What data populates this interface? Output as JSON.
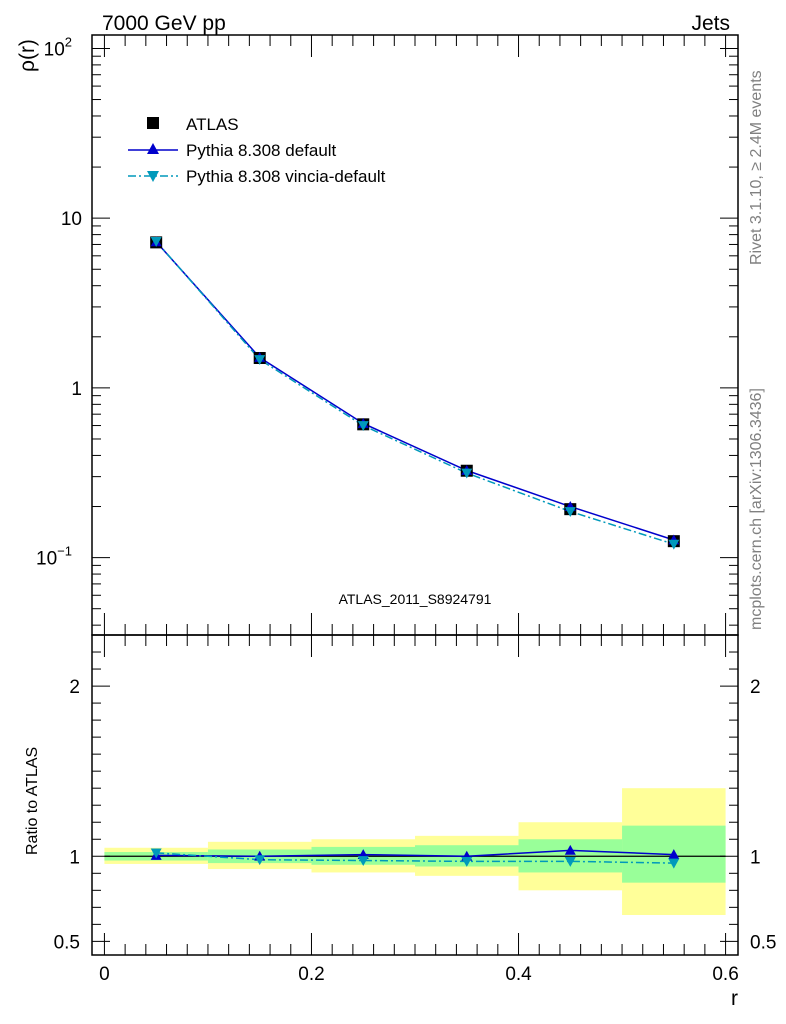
{
  "header": {
    "left": "7000 GeV pp",
    "right": "Jets"
  },
  "side_text": {
    "rivet": "Rivet 3.1.10, ≥ 2.4M events",
    "mcplots": "mcplots.cern.ch [arXiv:1306.3436]"
  },
  "analysis_label": "ATLAS_2011_S8924791",
  "colors": {
    "data": "#000000",
    "pythia_default": "#0000cc",
    "pythia_vincia": "#0099bb",
    "band_inner": "#99ff99",
    "band_outer": "#ffff99",
    "analysis_label": "#808080"
  },
  "chart_data": [
    {
      "type": "line",
      "panel": "main",
      "ylabel": "ρ(r)",
      "yscale": "log",
      "xlim": [
        -0.012,
        0.612
      ],
      "ylim": [
        0.035,
        120
      ],
      "y_ticks": [
        {
          "value": 100,
          "base": "10",
          "exp": "2"
        },
        {
          "value": 10,
          "label": "10"
        },
        {
          "value": 1,
          "label": "1"
        },
        {
          "value": 0.1,
          "base": "10",
          "exp": "−1"
        }
      ],
      "legend_position": "top-left",
      "series": [
        {
          "name": "ATLAS",
          "style": "markers",
          "x": [
            0.05,
            0.15,
            0.25,
            0.35,
            0.45,
            0.55
          ],
          "values": [
            7.2,
            1.5,
            0.61,
            0.325,
            0.193,
            0.125
          ]
        },
        {
          "name": "Pythia 8.308 default",
          "style": "solid",
          "x": [
            0.05,
            0.15,
            0.25,
            0.35,
            0.45,
            0.55
          ],
          "values": [
            7.25,
            1.51,
            0.617,
            0.326,
            0.2,
            0.127
          ]
        },
        {
          "name": "Pythia 8.308 vincia-default",
          "style": "dashdot",
          "x": [
            0.05,
            0.15,
            0.25,
            0.35,
            0.45,
            0.55
          ],
          "values": [
            7.3,
            1.47,
            0.6,
            0.315,
            0.187,
            0.12
          ]
        }
      ]
    },
    {
      "type": "line",
      "panel": "ratio",
      "xlabel": "r",
      "ylabel": "Ratio to ATLAS",
      "xlim": [
        -0.012,
        0.612
      ],
      "ylim": [
        0.42,
        2.3
      ],
      "x_ticks": [
        {
          "value": 0,
          "label": "0"
        },
        {
          "value": 0.2,
          "label": "0.2"
        },
        {
          "value": 0.4,
          "label": "0.4"
        },
        {
          "value": 0.6,
          "label": "0.6"
        }
      ],
      "y_ticks": [
        {
          "value": 2,
          "label": "2"
        },
        {
          "value": 1,
          "label": "1"
        },
        {
          "value": 0.5,
          "label": "0.5"
        }
      ],
      "bands": [
        {
          "x0": 0.0,
          "x1": 0.1,
          "inner": [
            0.975,
            1.025
          ],
          "outer": [
            0.955,
            1.05
          ]
        },
        {
          "x0": 0.1,
          "x1": 0.2,
          "inner": [
            0.96,
            1.04
          ],
          "outer": [
            0.925,
            1.085
          ]
        },
        {
          "x0": 0.2,
          "x1": 0.3,
          "inner": [
            0.95,
            1.055
          ],
          "outer": [
            0.905,
            1.1
          ]
        },
        {
          "x0": 0.3,
          "x1": 0.4,
          "inner": [
            0.94,
            1.065
          ],
          "outer": [
            0.885,
            1.12
          ]
        },
        {
          "x0": 0.4,
          "x1": 0.5,
          "inner": [
            0.905,
            1.1
          ],
          "outer": [
            0.8,
            1.2
          ]
        },
        {
          "x0": 0.5,
          "x1": 0.6,
          "inner": [
            0.845,
            1.18
          ],
          "outer": [
            0.655,
            1.4
          ]
        }
      ],
      "series": [
        {
          "name": "Pythia 8.308 default",
          "style": "solid",
          "x": [
            0.05,
            0.15,
            0.25,
            0.35,
            0.45,
            0.55
          ],
          "values": [
            1.005,
            1.0,
            1.01,
            1.0,
            1.035,
            1.01
          ]
        },
        {
          "name": "Pythia 8.308 vincia-default",
          "style": "dashdot",
          "x": [
            0.05,
            0.15,
            0.25,
            0.35,
            0.45,
            0.55
          ],
          "values": [
            1.02,
            0.98,
            0.975,
            0.97,
            0.97,
            0.96
          ]
        }
      ]
    }
  ]
}
